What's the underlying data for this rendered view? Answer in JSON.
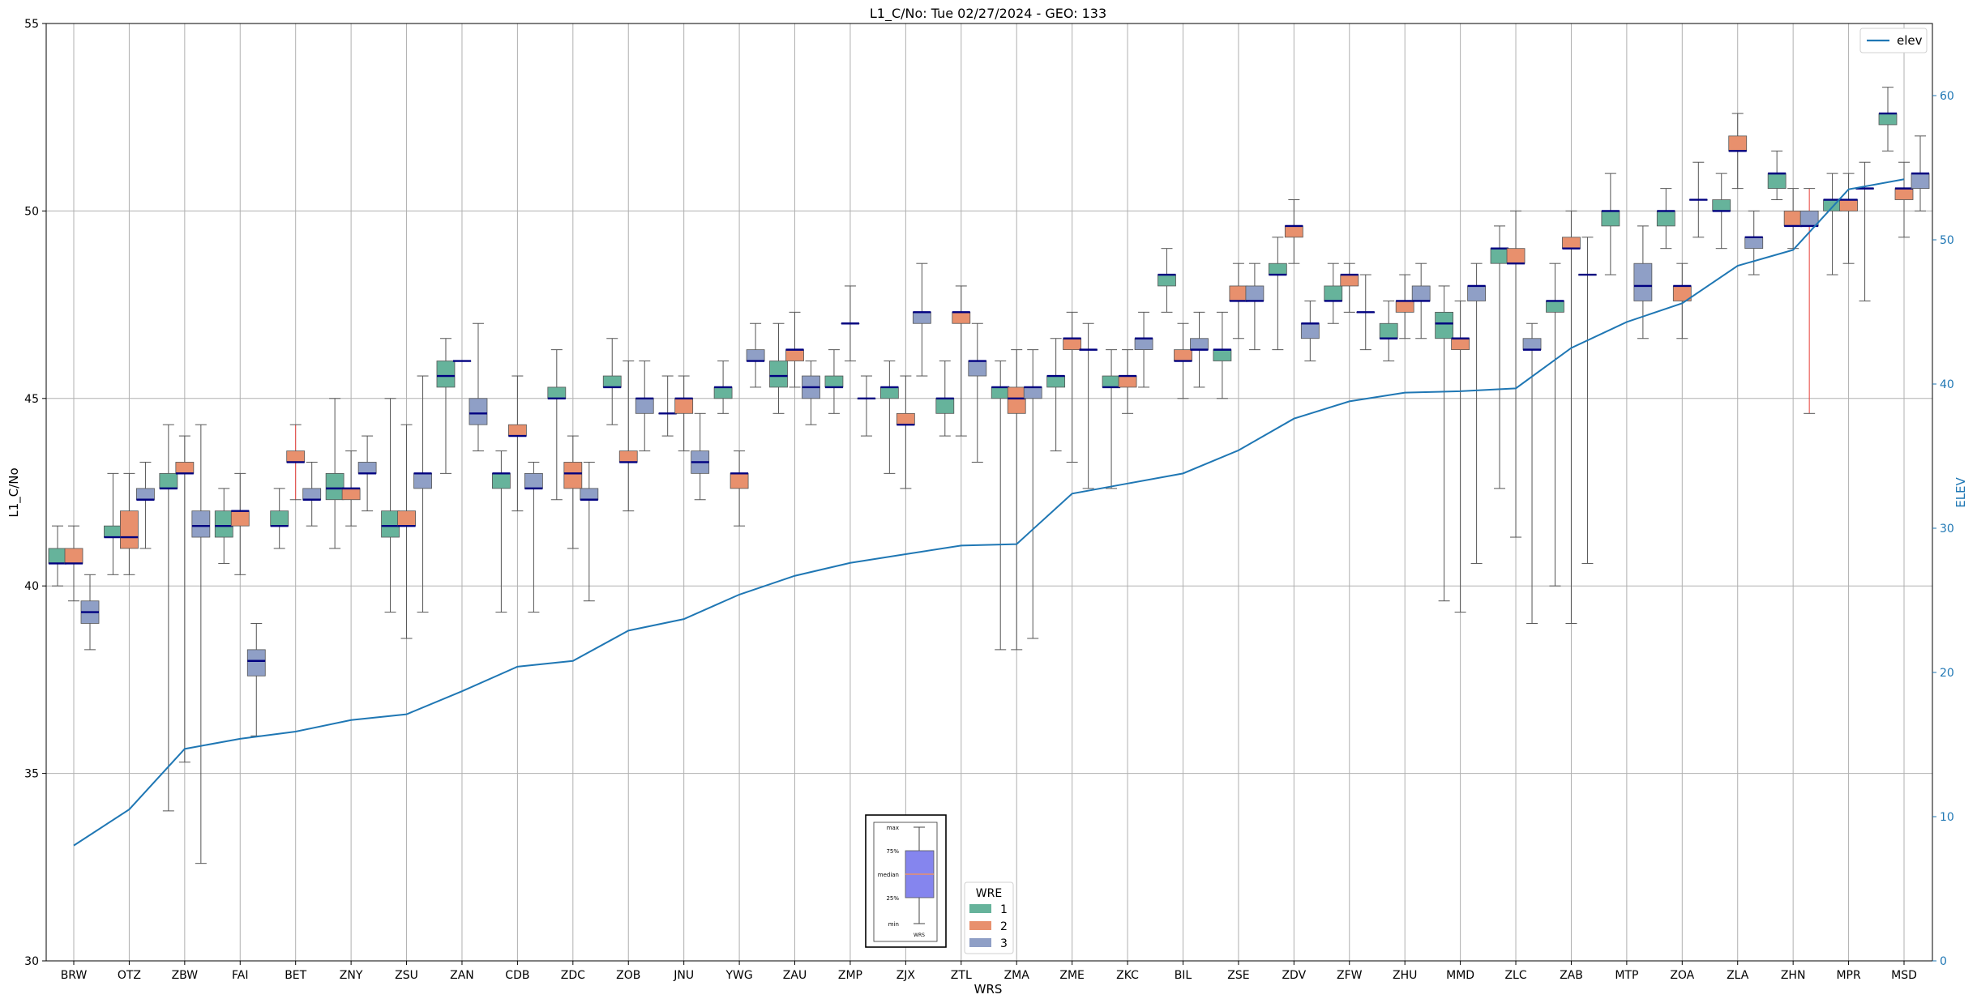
{
  "chart_data": {
    "type": "box",
    "title": "L1_C/No: Tue 02/27/2024 - GEO: 133",
    "xlabel": "WRS",
    "ylabel": "L1_C/No",
    "y2label": "ELEV",
    "ylim": [
      30,
      55
    ],
    "y2lim": [
      0,
      65
    ],
    "yticks": [
      30,
      35,
      40,
      45,
      50,
      55
    ],
    "y2ticks": [
      0,
      10,
      20,
      30,
      40,
      50,
      60
    ],
    "grid": true,
    "categories": [
      "BRW",
      "OTZ",
      "ZBW",
      "FAI",
      "BET",
      "ZNY",
      "ZSU",
      "ZAN",
      "CDB",
      "ZDC",
      "ZOB",
      "JNU",
      "YWG",
      "ZAU",
      "ZMP",
      "ZJX",
      "ZTL",
      "ZMA",
      "ZME",
      "ZKC",
      "BIL",
      "ZSE",
      "ZDV",
      "ZFW",
      "ZHU",
      "MMD",
      "ZLC",
      "ZAB",
      "MTP",
      "ZOA",
      "ZLA",
      "ZHN",
      "MPR",
      "MSD"
    ],
    "wre_legend": {
      "title": "WRE",
      "entries": [
        {
          "label": "1",
          "color": "#66b39b"
        },
        {
          "label": "2",
          "color": "#e8906d"
        },
        {
          "label": "3",
          "color": "#8f9fc6"
        }
      ]
    },
    "elev_legend": {
      "label": "elev",
      "color": "#1f77b4"
    },
    "box_key": {
      "labels": [
        "max",
        "75%",
        "median",
        "25%",
        "min"
      ],
      "xlabel": "WRS"
    },
    "elev": [
      8,
      10.5,
      14.7,
      15.4,
      15.9,
      16.7,
      17.1,
      18.7,
      20.4,
      20.8,
      22.9,
      23.7,
      25.4,
      26.7,
      27.6,
      28.2,
      28.8,
      28.9,
      32.4,
      33.1,
      33.8,
      35.4,
      37.6,
      38.8,
      39.4,
      39.5,
      39.7,
      42.5,
      44.3,
      45.6,
      48.2,
      49.3,
      53.5,
      54.2
    ],
    "boxes": [
      {
        "wrs": "BRW",
        "wre": 1,
        "min": 40.0,
        "q1": 40.6,
        "med": 40.6,
        "q3": 41.0,
        "max": 41.6
      },
      {
        "wrs": "BRW",
        "wre": 2,
        "min": 39.6,
        "q1": 40.6,
        "med": 40.6,
        "q3": 41.0,
        "max": 41.6
      },
      {
        "wrs": "BRW",
        "wre": 3,
        "min": 38.3,
        "q1": 39.0,
        "med": 39.3,
        "q3": 39.6,
        "max": 40.3
      },
      {
        "wrs": "OTZ",
        "wre": 1,
        "min": 40.3,
        "q1": 41.3,
        "med": 41.3,
        "q3": 41.6,
        "max": 43.0
      },
      {
        "wrs": "OTZ",
        "wre": 2,
        "min": 40.3,
        "q1": 41.0,
        "med": 41.3,
        "q3": 42.0,
        "max": 43.0
      },
      {
        "wrs": "OTZ",
        "wre": 3,
        "min": 41.0,
        "q1": 42.3,
        "med": 42.3,
        "q3": 42.6,
        "max": 43.3
      },
      {
        "wrs": "ZBW",
        "wre": 1,
        "min": 34.0,
        "q1": 42.6,
        "med": 42.6,
        "q3": 43.0,
        "max": 44.3
      },
      {
        "wrs": "ZBW",
        "wre": 2,
        "min": 35.3,
        "q1": 43.0,
        "med": 43.0,
        "q3": 43.3,
        "max": 44.0
      },
      {
        "wrs": "ZBW",
        "wre": 3,
        "min": 32.6,
        "q1": 41.3,
        "med": 41.6,
        "q3": 42.0,
        "max": 44.3
      },
      {
        "wrs": "FAI",
        "wre": 1,
        "min": 40.6,
        "q1": 41.3,
        "med": 41.6,
        "q3": 42.0,
        "max": 42.6
      },
      {
        "wrs": "FAI",
        "wre": 2,
        "min": 40.3,
        "q1": 41.6,
        "med": 42.0,
        "q3": 42.0,
        "max": 43.0
      },
      {
        "wrs": "FAI",
        "wre": 3,
        "min": 36.0,
        "q1": 37.6,
        "med": 38.0,
        "q3": 38.3,
        "max": 39.0
      },
      {
        "wrs": "BET",
        "wre": 1,
        "min": 41.0,
        "q1": 41.6,
        "med": 41.6,
        "q3": 42.0,
        "max": 42.6
      },
      {
        "wrs": "BET",
        "wre": 2,
        "min": 42.3,
        "q1": 43.3,
        "med": 43.3,
        "q3": 43.6,
        "max": 44.3,
        "red": true
      },
      {
        "wrs": "BET",
        "wre": 3,
        "min": 41.6,
        "q1": 42.3,
        "med": 42.3,
        "q3": 42.6,
        "max": 43.3
      },
      {
        "wrs": "ZNY",
        "wre": 1,
        "min": 41.0,
        "q1": 42.3,
        "med": 42.6,
        "q3": 43.0,
        "max": 45.0
      },
      {
        "wrs": "ZNY",
        "wre": 2,
        "min": 41.6,
        "q1": 42.3,
        "med": 42.6,
        "q3": 42.6,
        "max": 43.6
      },
      {
        "wrs": "ZNY",
        "wre": 3,
        "min": 42.0,
        "q1": 43.0,
        "med": 43.0,
        "q3": 43.3,
        "max": 44.0
      },
      {
        "wrs": "ZSU",
        "wre": 1,
        "min": 39.3,
        "q1": 41.3,
        "med": 41.6,
        "q3": 42.0,
        "max": 45.0
      },
      {
        "wrs": "ZSU",
        "wre": 2,
        "min": 38.6,
        "q1": 41.6,
        "med": 41.6,
        "q3": 42.0,
        "max": 44.3
      },
      {
        "wrs": "ZSU",
        "wre": 3,
        "min": 39.3,
        "q1": 42.6,
        "med": 43.0,
        "q3": 43.0,
        "max": 45.6
      },
      {
        "wrs": "ZAN",
        "wre": 1,
        "min": 43.0,
        "q1": 45.3,
        "med": 45.6,
        "q3": 46.0,
        "max": 46.6
      },
      {
        "wrs": "ZAN",
        "wre": 2,
        "min": null,
        "q1": 46.0,
        "med": 46.0,
        "q3": 46.0,
        "max": null
      },
      {
        "wrs": "ZAN",
        "wre": 3,
        "min": 43.6,
        "q1": 44.3,
        "med": 44.6,
        "q3": 45.0,
        "max": 47.0
      },
      {
        "wrs": "CDB",
        "wre": 1,
        "min": 39.3,
        "q1": 42.6,
        "med": 43.0,
        "q3": 43.0,
        "max": 43.6
      },
      {
        "wrs": "CDB",
        "wre": 2,
        "min": 42.0,
        "q1": 44.0,
        "med": 44.0,
        "q3": 44.3,
        "max": 45.6
      },
      {
        "wrs": "CDB",
        "wre": 3,
        "min": 39.3,
        "q1": 42.6,
        "med": 42.6,
        "q3": 43.0,
        "max": 43.3
      },
      {
        "wrs": "ZDC",
        "wre": 1,
        "min": 42.3,
        "q1": 45.0,
        "med": 45.0,
        "q3": 45.3,
        "max": 46.3
      },
      {
        "wrs": "ZDC",
        "wre": 2,
        "min": 41.0,
        "q1": 42.6,
        "med": 43.0,
        "q3": 43.3,
        "max": 44.0
      },
      {
        "wrs": "ZDC",
        "wre": 3,
        "min": 39.6,
        "q1": 42.3,
        "med": 42.3,
        "q3": 42.6,
        "max": 43.3
      },
      {
        "wrs": "ZOB",
        "wre": 1,
        "min": 44.3,
        "q1": 45.3,
        "med": 45.3,
        "q3": 45.6,
        "max": 46.6
      },
      {
        "wrs": "ZOB",
        "wre": 2,
        "min": 42.0,
        "q1": 43.3,
        "med": 43.3,
        "q3": 43.6,
        "max": 46.0
      },
      {
        "wrs": "ZOB",
        "wre": 3,
        "min": 43.6,
        "q1": 44.6,
        "med": 45.0,
        "q3": 45.0,
        "max": 46.0
      },
      {
        "wrs": "JNU",
        "wre": 1,
        "min": 44.0,
        "q1": 44.6,
        "med": 44.6,
        "q3": 44.6,
        "max": 45.6
      },
      {
        "wrs": "JNU",
        "wre": 2,
        "min": 43.6,
        "q1": 44.6,
        "med": 45.0,
        "q3": 45.0,
        "max": 45.6
      },
      {
        "wrs": "JNU",
        "wre": 3,
        "min": 42.3,
        "q1": 43.0,
        "med": 43.3,
        "q3": 43.6,
        "max": 44.6
      },
      {
        "wrs": "YWG",
        "wre": 1,
        "min": 44.6,
        "q1": 45.0,
        "med": 45.3,
        "q3": 45.3,
        "max": 46.0
      },
      {
        "wrs": "YWG",
        "wre": 2,
        "min": 41.6,
        "q1": 42.6,
        "med": 43.0,
        "q3": 43.0,
        "max": 43.6
      },
      {
        "wrs": "YWG",
        "wre": 3,
        "min": 45.3,
        "q1": 46.0,
        "med": 46.0,
        "q3": 46.3,
        "max": 47.0
      },
      {
        "wrs": "ZAU",
        "wre": 1,
        "min": 44.6,
        "q1": 45.3,
        "med": 45.6,
        "q3": 46.0,
        "max": 47.0
      },
      {
        "wrs": "ZAU",
        "wre": 2,
        "min": 45.3,
        "q1": 46.0,
        "med": 46.3,
        "q3": 46.3,
        "max": 47.3
      },
      {
        "wrs": "ZAU",
        "wre": 3,
        "min": 44.3,
        "q1": 45.0,
        "med": 45.3,
        "q3": 45.6,
        "max": 46.0
      },
      {
        "wrs": "ZMP",
        "wre": 1,
        "min": 44.6,
        "q1": 45.3,
        "med": 45.3,
        "q3": 45.6,
        "max": 46.3
      },
      {
        "wrs": "ZMP",
        "wre": 2,
        "min": 46.0,
        "q1": 47.0,
        "med": 47.0,
        "q3": 47.0,
        "max": 48.0
      },
      {
        "wrs": "ZMP",
        "wre": 3,
        "min": 44.0,
        "q1": 45.0,
        "med": 45.0,
        "q3": 45.0,
        "max": 45.6
      },
      {
        "wrs": "ZJX",
        "wre": 1,
        "min": 43.0,
        "q1": 45.0,
        "med": 45.3,
        "q3": 45.3,
        "max": 46.0
      },
      {
        "wrs": "ZJX",
        "wre": 2,
        "min": 42.6,
        "q1": 44.3,
        "med": 44.3,
        "q3": 44.6,
        "max": 45.6
      },
      {
        "wrs": "ZJX",
        "wre": 3,
        "min": 45.6,
        "q1": 47.0,
        "med": 47.3,
        "q3": 47.3,
        "max": 48.6
      },
      {
        "wrs": "ZTL",
        "wre": 1,
        "min": 44.0,
        "q1": 44.6,
        "med": 45.0,
        "q3": 45.0,
        "max": 46.0
      },
      {
        "wrs": "ZTL",
        "wre": 2,
        "min": 44.0,
        "q1": 47.0,
        "med": 47.3,
        "q3": 47.3,
        "max": 48.0
      },
      {
        "wrs": "ZTL",
        "wre": 3,
        "min": 43.3,
        "q1": 45.6,
        "med": 46.0,
        "q3": 46.0,
        "max": 47.0
      },
      {
        "wrs": "ZMA",
        "wre": 1,
        "min": 38.3,
        "q1": 45.0,
        "med": 45.3,
        "q3": 45.3,
        "max": 46.0
      },
      {
        "wrs": "ZMA",
        "wre": 2,
        "min": 38.3,
        "q1": 44.6,
        "med": 45.0,
        "q3": 45.3,
        "max": 46.3
      },
      {
        "wrs": "ZMA",
        "wre": 3,
        "min": 38.6,
        "q1": 45.0,
        "med": 45.3,
        "q3": 45.3,
        "max": 46.3
      },
      {
        "wrs": "ZME",
        "wre": 1,
        "min": 43.6,
        "q1": 45.3,
        "med": 45.6,
        "q3": 45.6,
        "max": 46.6
      },
      {
        "wrs": "ZME",
        "wre": 2,
        "min": 43.3,
        "q1": 46.3,
        "med": 46.6,
        "q3": 46.6,
        "max": 47.3
      },
      {
        "wrs": "ZME",
        "wre": 3,
        "min": 42.6,
        "q1": 46.3,
        "med": 46.3,
        "q3": 46.3,
        "max": 47.0
      },
      {
        "wrs": "ZKC",
        "wre": 1,
        "min": 42.6,
        "q1": 45.3,
        "med": 45.3,
        "q3": 45.6,
        "max": 46.3
      },
      {
        "wrs": "ZKC",
        "wre": 2,
        "min": 44.6,
        "q1": 45.3,
        "med": 45.6,
        "q3": 45.6,
        "max": 46.3
      },
      {
        "wrs": "ZKC",
        "wre": 3,
        "min": 45.3,
        "q1": 46.3,
        "med": 46.6,
        "q3": 46.6,
        "max": 47.3
      },
      {
        "wrs": "BIL",
        "wre": 1,
        "min": 47.3,
        "q1": 48.0,
        "med": 48.3,
        "q3": 48.3,
        "max": 49.0
      },
      {
        "wrs": "BIL",
        "wre": 2,
        "min": 45.0,
        "q1": 46.0,
        "med": 46.0,
        "q3": 46.3,
        "max": 47.0
      },
      {
        "wrs": "BIL",
        "wre": 3,
        "min": 45.3,
        "q1": 46.3,
        "med": 46.3,
        "q3": 46.6,
        "max": 47.3
      },
      {
        "wrs": "ZSE",
        "wre": 1,
        "min": 45.0,
        "q1": 46.0,
        "med": 46.3,
        "q3": 46.3,
        "max": 47.3
      },
      {
        "wrs": "ZSE",
        "wre": 2,
        "min": 46.6,
        "q1": 47.6,
        "med": 47.6,
        "q3": 48.0,
        "max": 48.6
      },
      {
        "wrs": "ZSE",
        "wre": 3,
        "min": 46.3,
        "q1": 47.6,
        "med": 47.6,
        "q3": 48.0,
        "max": 48.6
      },
      {
        "wrs": "ZDV",
        "wre": 1,
        "min": 46.3,
        "q1": 48.3,
        "med": 48.3,
        "q3": 48.6,
        "max": 49.3
      },
      {
        "wrs": "ZDV",
        "wre": 2,
        "min": 48.6,
        "q1": 49.3,
        "med": 49.6,
        "q3": 49.6,
        "max": 50.3
      },
      {
        "wrs": "ZDV",
        "wre": 3,
        "min": 46.0,
        "q1": 46.6,
        "med": 47.0,
        "q3": 47.0,
        "max": 47.6
      },
      {
        "wrs": "ZFW",
        "wre": 1,
        "min": 47.0,
        "q1": 47.6,
        "med": 47.6,
        "q3": 48.0,
        "max": 48.6
      },
      {
        "wrs": "ZFW",
        "wre": 2,
        "min": 47.3,
        "q1": 48.0,
        "med": 48.3,
        "q3": 48.3,
        "max": 48.6
      },
      {
        "wrs": "ZFW",
        "wre": 3,
        "min": 46.3,
        "q1": 47.3,
        "med": 47.3,
        "q3": 47.3,
        "max": 48.3
      },
      {
        "wrs": "ZHU",
        "wre": 1,
        "min": 46.0,
        "q1": 46.6,
        "med": 46.6,
        "q3": 47.0,
        "max": 47.6
      },
      {
        "wrs": "ZHU",
        "wre": 2,
        "min": 46.6,
        "q1": 47.3,
        "med": 47.6,
        "q3": 47.6,
        "max": 48.3
      },
      {
        "wrs": "ZHU",
        "wre": 3,
        "min": 46.6,
        "q1": 47.6,
        "med": 47.6,
        "q3": 48.0,
        "max": 48.6
      },
      {
        "wrs": "MMD",
        "wre": 1,
        "min": 39.6,
        "q1": 46.6,
        "med": 47.0,
        "q3": 47.3,
        "max": 48.0
      },
      {
        "wrs": "MMD",
        "wre": 2,
        "min": 39.3,
        "q1": 46.3,
        "med": 46.6,
        "q3": 46.6,
        "max": 47.6
      },
      {
        "wrs": "MMD",
        "wre": 3,
        "min": 40.6,
        "q1": 47.6,
        "med": 48.0,
        "q3": 48.0,
        "max": 48.6
      },
      {
        "wrs": "ZLC",
        "wre": 1,
        "min": 42.6,
        "q1": 48.6,
        "med": 49.0,
        "q3": 49.0,
        "max": 49.6
      },
      {
        "wrs": "ZLC",
        "wre": 2,
        "min": 41.3,
        "q1": 48.6,
        "med": 48.6,
        "q3": 49.0,
        "max": 50.0
      },
      {
        "wrs": "ZLC",
        "wre": 3,
        "min": 39.0,
        "q1": 46.3,
        "med": 46.3,
        "q3": 46.6,
        "max": 47.0
      },
      {
        "wrs": "ZAB",
        "wre": 1,
        "min": 40.0,
        "q1": 47.3,
        "med": 47.6,
        "q3": 47.6,
        "max": 48.6
      },
      {
        "wrs": "ZAB",
        "wre": 2,
        "min": 39.0,
        "q1": 49.0,
        "med": 49.0,
        "q3": 49.3,
        "max": 50.0
      },
      {
        "wrs": "ZAB",
        "wre": 3,
        "min": 40.6,
        "q1": 48.3,
        "med": 48.3,
        "q3": 48.3,
        "max": 49.3
      },
      {
        "wrs": "MTP",
        "wre": 1,
        "min": 48.3,
        "q1": 49.6,
        "med": 50.0,
        "q3": 50.0,
        "max": 51.0
      },
      {
        "wrs": "MTP",
        "wre": 2,
        "min": null,
        "q1": null,
        "med": null,
        "q3": null,
        "max": null
      },
      {
        "wrs": "MTP",
        "wre": 3,
        "min": 46.6,
        "q1": 47.6,
        "med": 48.0,
        "q3": 48.6,
        "max": 49.6
      },
      {
        "wrs": "ZOA",
        "wre": 1,
        "min": 49.0,
        "q1": 49.6,
        "med": 50.0,
        "q3": 50.0,
        "max": 50.6
      },
      {
        "wrs": "ZOA",
        "wre": 2,
        "min": 46.6,
        "q1": 47.6,
        "med": 48.0,
        "q3": 48.0,
        "max": 48.6
      },
      {
        "wrs": "ZOA",
        "wre": 3,
        "min": 49.3,
        "q1": 50.3,
        "med": 50.3,
        "q3": 50.3,
        "max": 51.3
      },
      {
        "wrs": "ZLA",
        "wre": 1,
        "min": 49.0,
        "q1": 50.0,
        "med": 50.0,
        "q3": 50.3,
        "max": 51.0
      },
      {
        "wrs": "ZLA",
        "wre": 2,
        "min": 50.6,
        "q1": 51.6,
        "med": 51.6,
        "q3": 52.0,
        "max": 52.6
      },
      {
        "wrs": "ZLA",
        "wre": 3,
        "min": 48.3,
        "q1": 49.0,
        "med": 49.3,
        "q3": 49.3,
        "max": 50.0
      },
      {
        "wrs": "ZHN",
        "wre": 1,
        "min": 50.3,
        "q1": 50.6,
        "med": 51.0,
        "q3": 51.0,
        "max": 51.6
      },
      {
        "wrs": "ZHN",
        "wre": 2,
        "min": 49.0,
        "q1": 49.6,
        "med": 49.6,
        "q3": 50.0,
        "max": 50.6
      },
      {
        "wrs": "ZHN",
        "wre": 3,
        "min": 44.6,
        "q1": 49.6,
        "med": 49.6,
        "q3": 50.0,
        "max": 50.6,
        "red": true
      },
      {
        "wrs": "MPR",
        "wre": 1,
        "min": 48.3,
        "q1": 50.0,
        "med": 50.3,
        "q3": 50.3,
        "max": 51.0
      },
      {
        "wrs": "MPR",
        "wre": 2,
        "min": 48.6,
        "q1": 50.0,
        "med": 50.3,
        "q3": 50.3,
        "max": 51.0
      },
      {
        "wrs": "MPR",
        "wre": 3,
        "min": 47.6,
        "q1": 50.6,
        "med": 50.6,
        "q3": 50.6,
        "max": 51.3
      },
      {
        "wrs": "MSD",
        "wre": 1,
        "min": 51.6,
        "q1": 52.3,
        "med": 52.6,
        "q3": 52.6,
        "max": 53.3
      },
      {
        "wrs": "MSD",
        "wre": 2,
        "min": 49.3,
        "q1": 50.3,
        "med": 50.6,
        "q3": 50.6,
        "max": 51.3
      },
      {
        "wrs": "MSD",
        "wre": 3,
        "min": 50.0,
        "q1": 50.6,
        "med": 51.0,
        "q3": 51.0,
        "max": 52.0
      }
    ]
  }
}
